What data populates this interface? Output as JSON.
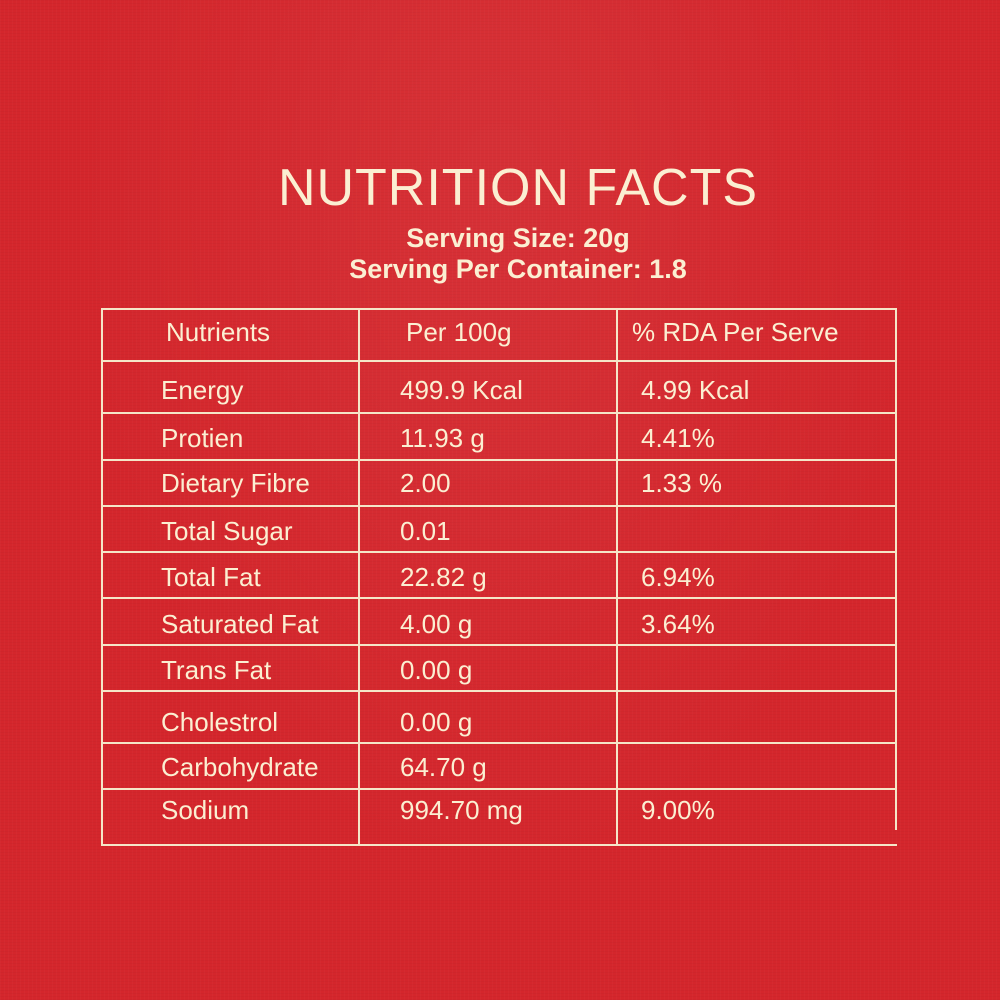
{
  "header": {
    "title": "NUTRITION FACTS",
    "serving_size": "Serving Size: 20g",
    "serving_per_container": "Serving Per Container: 1.8"
  },
  "table": {
    "columns": [
      "Nutrients",
      "Per 100g",
      "% RDA Per Serve"
    ],
    "rows": [
      {
        "nutrient": "Energy",
        "per100": "499.9 Kcal",
        "rda": "4.99 Kcal"
      },
      {
        "nutrient": "Protien",
        "per100": "11.93 g",
        "rda": "4.41%"
      },
      {
        "nutrient": "Dietary Fibre",
        "per100": "2.00",
        "rda": "1.33 %"
      },
      {
        "nutrient": "Total Sugar",
        "per100": "0.01",
        "rda": ""
      },
      {
        "nutrient": "Total Fat",
        "per100": "22.82 g",
        "rda": "6.94%"
      },
      {
        "nutrient": "Saturated Fat",
        "per100": "4.00 g",
        "rda": "3.64%"
      },
      {
        "nutrient": "Trans Fat",
        "per100": "0.00 g",
        "rda": ""
      },
      {
        "nutrient": "Cholestrol",
        "per100": "0.00 g",
        "rda": ""
      },
      {
        "nutrient": "Carbohydrate",
        "per100": "64.70 g",
        "rda": ""
      },
      {
        "nutrient": "Sodium",
        "per100": "994.70 mg",
        "rda": "9.00%"
      }
    ]
  },
  "colors": {
    "background": "#d4262c",
    "text": "#fbefd2",
    "rule": "#f5e6c8"
  }
}
